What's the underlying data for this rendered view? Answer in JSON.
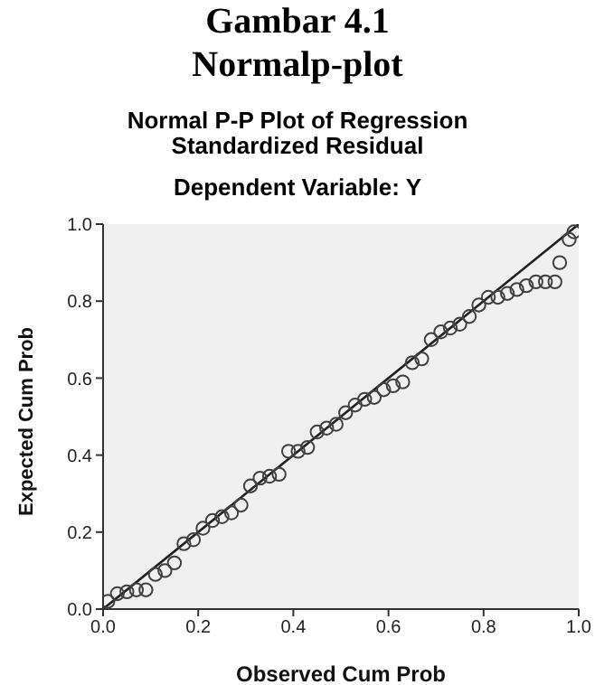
{
  "chart_data": {
    "type": "scatter",
    "title": "Normal P-P Plot of Regression Standardized Residual",
    "subtitle": "Dependent Variable: Y",
    "xlabel": "Observed Cum Prob",
    "ylabel": "Expected Cum Prob",
    "annotations": [
      "Gambar 4.1",
      "Normalp-plot"
    ],
    "xlim": [
      0,
      1
    ],
    "ylim": [
      0,
      1
    ],
    "xticks": [
      {
        "value": 0,
        "label": "0.0"
      },
      0.2,
      0.4,
      0.6,
      0.8,
      {
        "value": 1,
        "label": "1.0"
      }
    ],
    "yticks": [
      {
        "value": 0,
        "label": "0.0"
      },
      0.2,
      0.4,
      0.6,
      0.8,
      {
        "value": 1,
        "label": "1.0"
      }
    ],
    "grid": false,
    "marker": "circle",
    "series": [
      {
        "color": "#404040",
        "x": [
          0.01,
          0.03,
          0.05,
          0.07,
          0.09,
          0.11,
          0.13,
          0.15,
          0.17,
          0.19,
          0.21,
          0.23,
          0.25,
          0.27,
          0.29,
          0.31,
          0.33,
          0.35,
          0.37,
          0.39,
          0.41,
          0.43,
          0.45,
          0.47,
          0.49,
          0.51,
          0.53,
          0.55,
          0.57,
          0.59,
          0.61,
          0.63,
          0.65,
          0.67,
          0.69,
          0.71,
          0.73,
          0.75,
          0.77,
          0.79,
          0.81,
          0.83,
          0.85,
          0.87,
          0.89,
          0.91,
          0.93,
          0.95,
          0.96,
          0.98,
          0.99
        ],
        "values": [
          0.02,
          0.04,
          0.045,
          0.05,
          0.05,
          0.09,
          0.1,
          0.12,
          0.17,
          0.18,
          0.21,
          0.23,
          0.24,
          0.25,
          0.27,
          0.32,
          0.34,
          0.345,
          0.35,
          0.41,
          0.41,
          0.42,
          0.46,
          0.47,
          0.48,
          0.51,
          0.53,
          0.545,
          0.55,
          0.57,
          0.58,
          0.59,
          0.64,
          0.65,
          0.7,
          0.72,
          0.73,
          0.74,
          0.76,
          0.79,
          0.81,
          0.81,
          0.82,
          0.83,
          0.84,
          0.85,
          0.85,
          0.85,
          0.9,
          0.96,
          0.98
        ]
      },
      {
        "type": "line",
        "color": "#202020",
        "marker": "none",
        "line_style": "solid",
        "x": [
          0,
          1
        ],
        "values": [
          0,
          1
        ]
      }
    ]
  }
}
